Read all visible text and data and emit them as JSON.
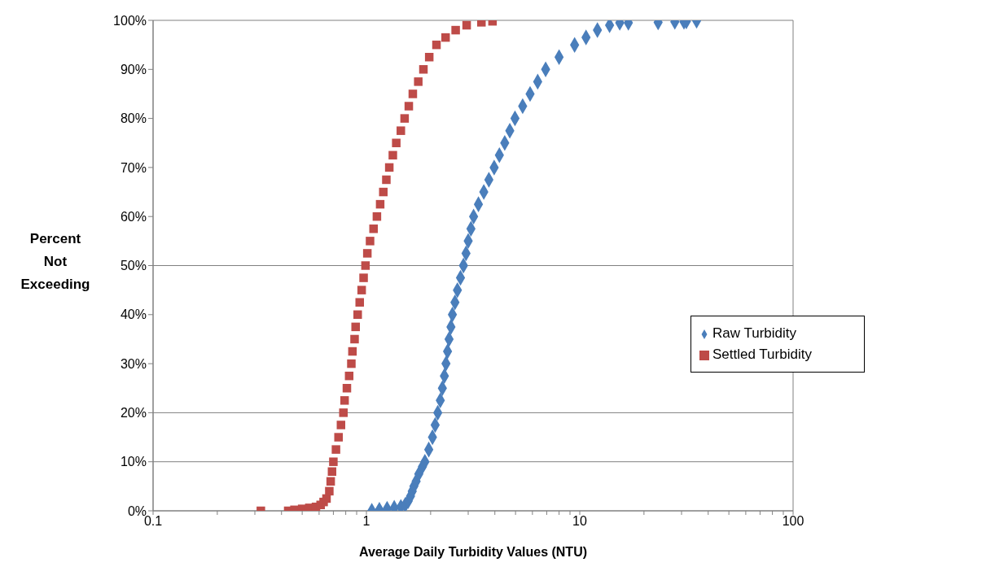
{
  "chart_data": {
    "type": "scatter",
    "xlabel": "Average Daily Turbidity Values (NTU)",
    "ylabel": "Percent Not Exceeding",
    "log": "x",
    "legend": "right",
    "xlim": [
      0.1,
      100
    ],
    "xticks": [
      0.1,
      {
        "value": 0.2,
        "label": null
      },
      {
        "value": 0.3,
        "label": null
      },
      {
        "value": 0.4,
        "label": null
      },
      {
        "value": 0.5,
        "label": null
      },
      {
        "value": 0.6,
        "label": null
      },
      {
        "value": 0.7,
        "label": null
      },
      {
        "value": 0.8,
        "label": null
      },
      {
        "value": 0.9,
        "label": null
      },
      1,
      {
        "value": 2,
        "label": null
      },
      {
        "value": 3,
        "label": null
      },
      {
        "value": 4,
        "label": null
      },
      {
        "value": 5,
        "label": null
      },
      {
        "value": 6,
        "label": null
      },
      {
        "value": 7,
        "label": null
      },
      {
        "value": 8,
        "label": null
      },
      {
        "value": 9,
        "label": null
      },
      10,
      {
        "value": 20,
        "label": null
      },
      {
        "value": 30,
        "label": null
      },
      {
        "value": 40,
        "label": null
      },
      {
        "value": 50,
        "label": null
      },
      {
        "value": 60,
        "label": null
      },
      {
        "value": 70,
        "label": null
      },
      {
        "value": 80,
        "label": null
      },
      {
        "value": 90,
        "label": null
      },
      100
    ],
    "ylim": [
      0,
      100
    ],
    "yticks": [
      {
        "value": 0,
        "label": "0%"
      },
      {
        "value": 10,
        "label": "10%"
      },
      {
        "value": 20,
        "label": "20%"
      },
      {
        "value": 30,
        "label": "30%"
      },
      {
        "value": 40,
        "label": "40%"
      },
      {
        "value": 50,
        "label": "50%"
      },
      {
        "value": 60,
        "label": "60%"
      },
      {
        "value": 70,
        "label": "70%"
      },
      {
        "value": 80,
        "label": "80%"
      },
      {
        "value": 90,
        "label": "90%"
      },
      {
        "value": 100,
        "label": "100%"
      }
    ],
    "ref_lines": [
      {
        "axis": "y",
        "value": 10,
        "color": "#808080"
      },
      {
        "axis": "y",
        "value": 20,
        "color": "#808080"
      },
      {
        "axis": "y",
        "value": 50,
        "color": "#808080"
      }
    ],
    "series": [
      {
        "name": "Raw Turbidity",
        "color": "#4a7ebb",
        "marker": "diamond",
        "x": [
          1.06,
          1.15,
          1.25,
          1.35,
          1.45,
          1.52,
          1.57,
          1.61,
          1.64,
          1.67,
          1.71,
          1.76,
          1.83,
          1.88,
          1.96,
          2.04,
          2.1,
          2.16,
          2.22,
          2.27,
          2.32,
          2.36,
          2.4,
          2.44,
          2.49,
          2.53,
          2.6,
          2.67,
          2.76,
          2.85,
          2.93,
          3.0,
          3.09,
          3.18,
          3.35,
          3.55,
          3.75,
          3.97,
          4.2,
          4.45,
          4.7,
          4.97,
          5.4,
          5.85,
          6.35,
          6.92,
          8.0,
          9.46,
          10.7,
          12.1,
          13.8,
          15.4,
          16.9,
          23.3,
          27.9,
          30.8,
          31.6,
          35.3
        ],
        "values": [
          0,
          0.2,
          0.4,
          0.6,
          0.8,
          1.2,
          2,
          3,
          4,
          5,
          6,
          7.5,
          9,
          10,
          12.5,
          15,
          17.5,
          20,
          22.5,
          25,
          27.5,
          30,
          32.5,
          35,
          37.5,
          40,
          42.5,
          45,
          47.5,
          50,
          52.5,
          55,
          57.5,
          60,
          62.5,
          65,
          67.5,
          70,
          72.5,
          75,
          77.5,
          80,
          82.5,
          85,
          87.5,
          90,
          92.5,
          95,
          96.5,
          98,
          99,
          99.5,
          99.5,
          99.6,
          99.7,
          99.7,
          99.8,
          99.9
        ]
      },
      {
        "name": "Settled Turbidity",
        "color": "#be4b48",
        "marker": "square",
        "x": [
          0.32,
          0.43,
          0.46,
          0.5,
          0.54,
          0.58,
          0.61,
          0.63,
          0.65,
          0.67,
          0.68,
          0.69,
          0.7,
          0.72,
          0.74,
          0.76,
          0.78,
          0.79,
          0.81,
          0.83,
          0.85,
          0.86,
          0.88,
          0.89,
          0.91,
          0.93,
          0.95,
          0.97,
          0.99,
          1.01,
          1.04,
          1.08,
          1.12,
          1.16,
          1.2,
          1.24,
          1.28,
          1.33,
          1.38,
          1.45,
          1.51,
          1.58,
          1.65,
          1.75,
          1.85,
          1.97,
          2.13,
          2.35,
          2.62,
          2.95,
          3.46,
          3.9
        ],
        "values": [
          0,
          0,
          0.2,
          0.4,
          0.6,
          0.8,
          1.2,
          1.8,
          2.5,
          4,
          6,
          8,
          10,
          12.5,
          15,
          17.5,
          20,
          22.5,
          25,
          27.5,
          30,
          32.5,
          35,
          37.5,
          40,
          42.5,
          45,
          47.5,
          50,
          52.5,
          55,
          57.5,
          60,
          62.5,
          65,
          67.5,
          70,
          72.5,
          75,
          77.5,
          80,
          82.5,
          85,
          87.5,
          90,
          92.5,
          95,
          96.5,
          98,
          99,
          99.6,
          99.8
        ]
      }
    ]
  }
}
